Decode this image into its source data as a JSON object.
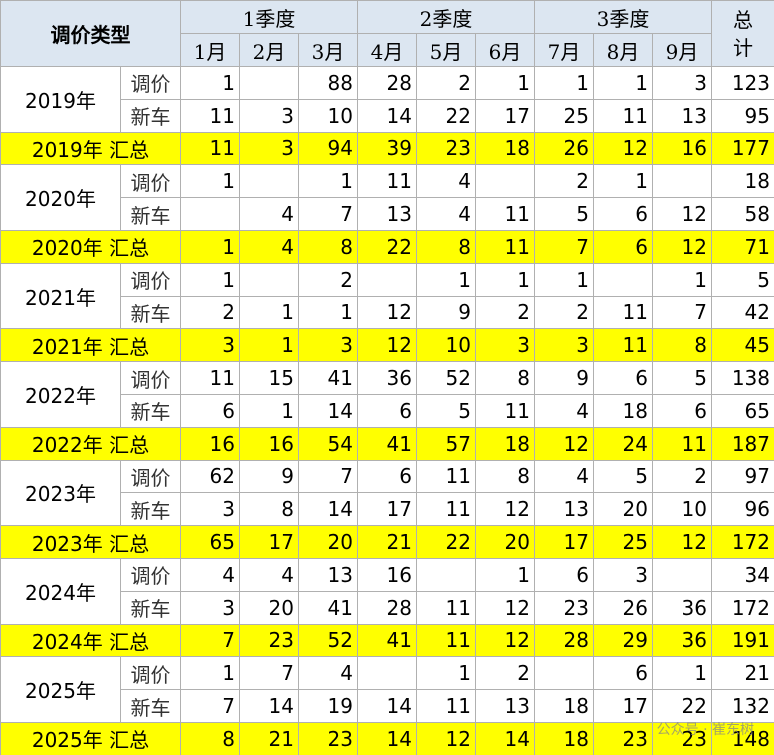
{
  "header": {
    "title": "调价类型",
    "quarters": [
      "1季度",
      "2季度",
      "3季度"
    ],
    "months": [
      "1月",
      "2月",
      "3月",
      "4月",
      "5月",
      "6月",
      "7月",
      "8月",
      "9月"
    ],
    "total": "总计"
  },
  "groups": [
    {
      "year": "2019年",
      "rows": [
        {
          "type": "调价",
          "values": [
            1,
            null,
            88,
            28,
            2,
            1,
            1,
            1,
            3,
            123
          ]
        },
        {
          "type": "新车",
          "values": [
            11,
            3,
            10,
            14,
            22,
            17,
            25,
            11,
            13,
            95
          ]
        }
      ],
      "summary": {
        "label": "2019年 汇总",
        "values": [
          11,
          3,
          94,
          39,
          23,
          18,
          26,
          12,
          16,
          177
        ]
      }
    },
    {
      "year": "2020年",
      "rows": [
        {
          "type": "调价",
          "values": [
            1,
            null,
            1,
            11,
            4,
            null,
            2,
            1,
            null,
            18
          ]
        },
        {
          "type": "新车",
          "values": [
            null,
            4,
            7,
            13,
            4,
            11,
            5,
            6,
            12,
            58
          ]
        }
      ],
      "summary": {
        "label": "2020年 汇总",
        "values": [
          1,
          4,
          8,
          22,
          8,
          11,
          7,
          6,
          12,
          71
        ]
      }
    },
    {
      "year": "2021年",
      "rows": [
        {
          "type": "调价",
          "values": [
            1,
            null,
            2,
            null,
            1,
            1,
            1,
            null,
            1,
            5
          ]
        },
        {
          "type": "新车",
          "values": [
            2,
            1,
            1,
            12,
            9,
            2,
            2,
            11,
            7,
            42
          ]
        }
      ],
      "summary": {
        "label": "2021年 汇总",
        "values": [
          3,
          1,
          3,
          12,
          10,
          3,
          3,
          11,
          8,
          45
        ]
      }
    },
    {
      "year": "2022年",
      "rows": [
        {
          "type": "调价",
          "values": [
            11,
            15,
            41,
            36,
            52,
            8,
            9,
            6,
            5,
            138
          ]
        },
        {
          "type": "新车",
          "values": [
            6,
            1,
            14,
            6,
            5,
            11,
            4,
            18,
            6,
            65
          ]
        }
      ],
      "summary": {
        "label": "2022年 汇总",
        "values": [
          16,
          16,
          54,
          41,
          57,
          18,
          12,
          24,
          11,
          187
        ]
      }
    },
    {
      "year": "2023年",
      "rows": [
        {
          "type": "调价",
          "values": [
            62,
            9,
            7,
            6,
            11,
            8,
            4,
            5,
            2,
            97
          ]
        },
        {
          "type": "新车",
          "values": [
            3,
            8,
            14,
            17,
            11,
            12,
            13,
            20,
            10,
            96
          ]
        }
      ],
      "summary": {
        "label": "2023年 汇总",
        "values": [
          65,
          17,
          20,
          21,
          22,
          20,
          17,
          25,
          12,
          172
        ]
      }
    },
    {
      "year": "2024年",
      "rows": [
        {
          "type": "调价",
          "values": [
            4,
            4,
            13,
            16,
            null,
            1,
            6,
            3,
            null,
            34
          ]
        },
        {
          "type": "新车",
          "values": [
            3,
            20,
            41,
            28,
            11,
            12,
            23,
            26,
            36,
            172
          ]
        }
      ],
      "summary": {
        "label": "2024年 汇总",
        "values": [
          7,
          23,
          52,
          41,
          11,
          12,
          28,
          29,
          36,
          191
        ]
      }
    },
    {
      "year": "2025年",
      "rows": [
        {
          "type": "调价",
          "values": [
            1,
            7,
            4,
            null,
            1,
            2,
            null,
            6,
            1,
            21
          ]
        },
        {
          "type": "新车",
          "values": [
            7,
            14,
            19,
            14,
            11,
            13,
            18,
            17,
            22,
            132
          ]
        }
      ],
      "summary": {
        "label": "2025年 汇总",
        "values": [
          8,
          21,
          23,
          14,
          12,
          14,
          18,
          23,
          23,
          148
        ]
      }
    }
  ],
  "watermark": "公众号 · 崔东树"
}
